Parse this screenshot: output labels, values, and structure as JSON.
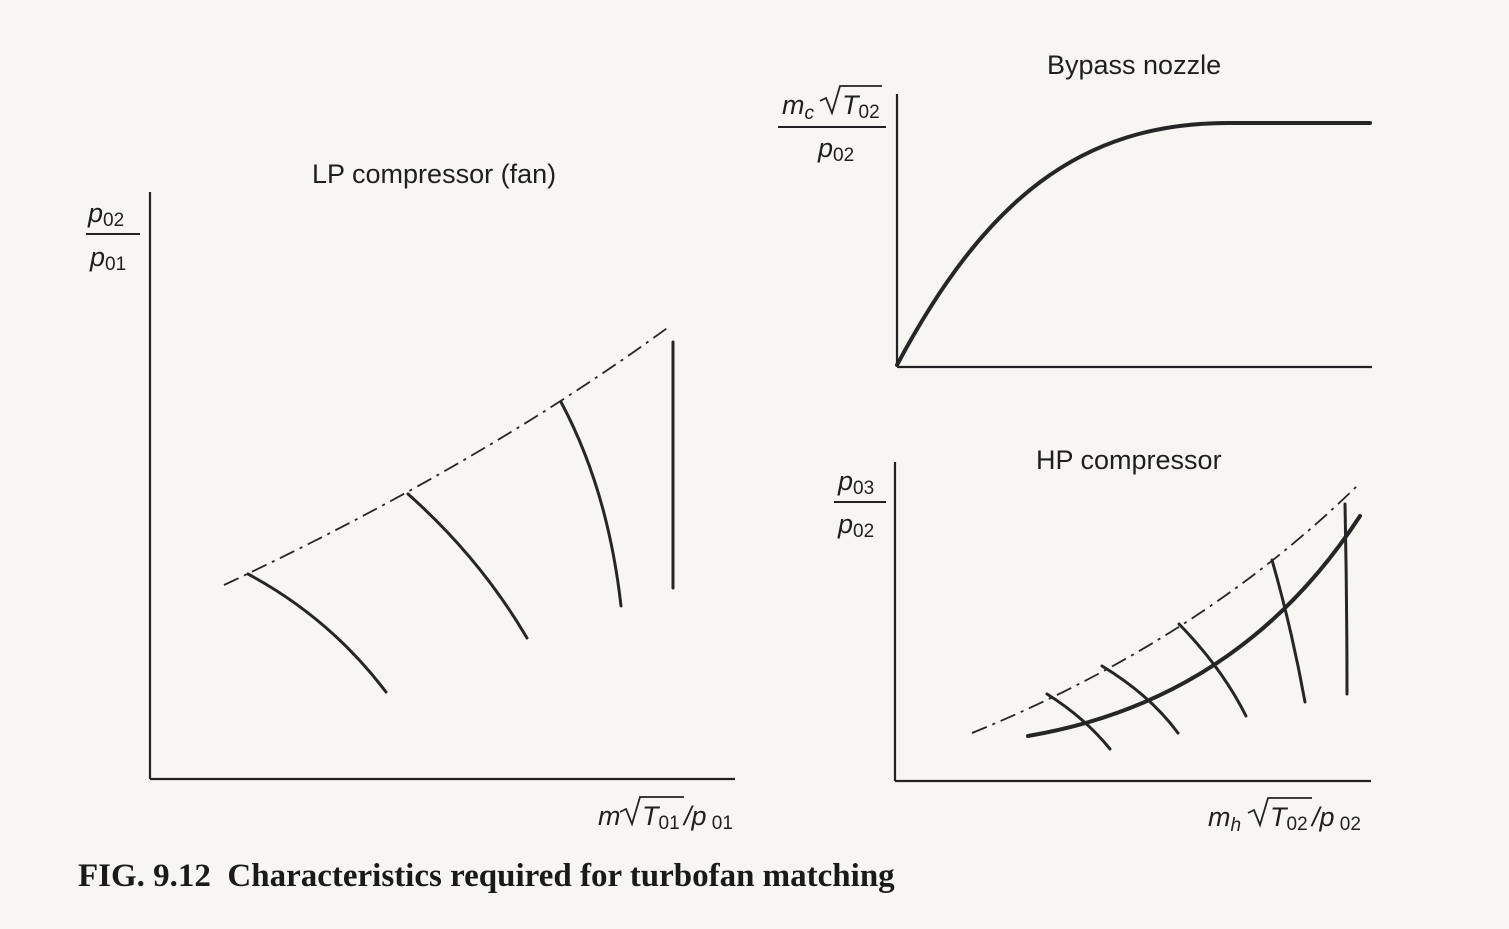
{
  "caption": "FIG. 9.12  Characteristics required for turbofan matching",
  "lp": {
    "title": "LP compressor (fan)",
    "ylabel_num": "p",
    "ylabel_num_sub": "02",
    "ylabel_den": "p",
    "ylabel_den_sub": "01",
    "xlabel_m": "m",
    "xlabel_T": "T",
    "xlabel_T_sub": "01",
    "xlabel_slash_p": "/p",
    "xlabel_p_sub": " 01"
  },
  "nozzle": {
    "title": "Bypass nozzle",
    "ylabel_m": "m",
    "ylabel_m_sub": "c",
    "ylabel_T": "T",
    "ylabel_T_sub": "02",
    "ylabel_den": "p",
    "ylabel_den_sub": "02"
  },
  "hp": {
    "title": "HP compressor",
    "ylabel_num": "p",
    "ylabel_num_sub": "03",
    "ylabel_den": "p",
    "ylabel_den_sub": "02",
    "xlabel_m": "m",
    "xlabel_m_sub": "h",
    "xlabel_T": "T",
    "xlabel_T_sub": "02",
    "xlabel_slash_p": "/p",
    "xlabel_p_sub": " 02"
  }
}
